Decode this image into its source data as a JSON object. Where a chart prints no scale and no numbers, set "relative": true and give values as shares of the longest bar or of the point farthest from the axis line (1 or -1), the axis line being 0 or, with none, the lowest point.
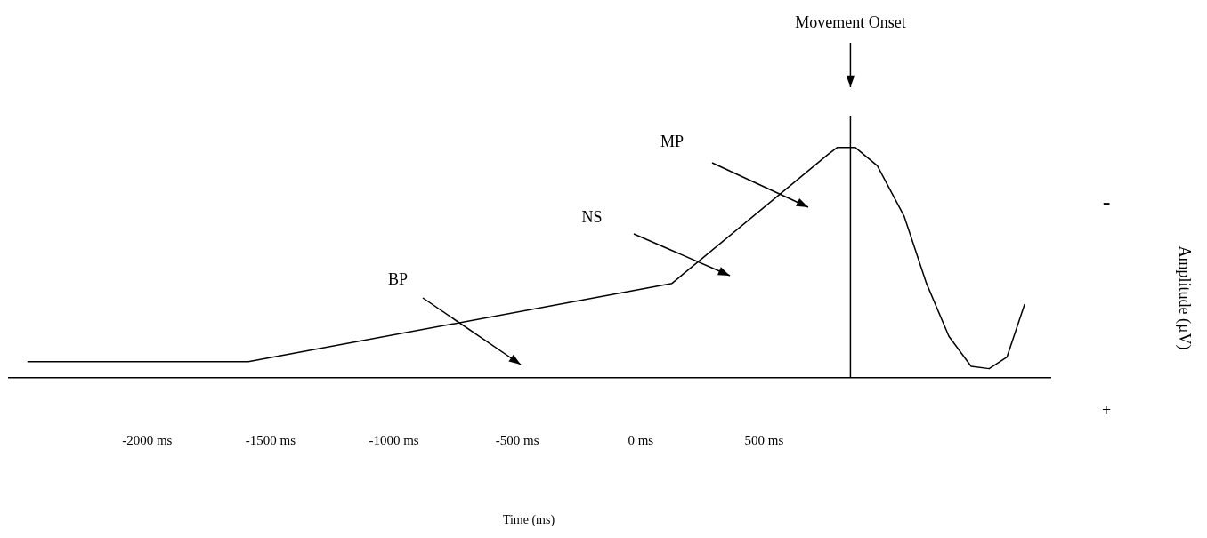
{
  "chart_data": {
    "type": "line",
    "relative": true,
    "xlim": [
      -2560,
      1660
    ],
    "xticks": [
      {
        "value": -2000,
        "label": "-2000 ms"
      },
      {
        "value": -1500,
        "label": "-1500 ms"
      },
      {
        "value": -1000,
        "label": "-1000 ms"
      },
      {
        "value": -500,
        "label": "-500 ms"
      },
      {
        "value": 0,
        "label": "0 ms"
      },
      {
        "value": 500,
        "label": "500 ms"
      }
    ],
    "x": [
      -2485,
      -1590,
      127,
      760,
      797,
      869,
      959,
      1068,
      1158,
      1249,
      1339,
      1412,
      1484,
      1556
    ],
    "series": [
      {
        "color": "#000000",
        "values": [
          0.07,
          0.07,
          0.41,
          0.97,
          1.0,
          1.0,
          0.92,
          0.7,
          0.41,
          0.18,
          0.05,
          0.04,
          0.09,
          0.32
        ]
      }
    ],
    "ref_lines": [
      {
        "axis": "x",
        "value": 850,
        "label": "Movement Onset",
        "color": "#000000"
      }
    ],
    "annotations": [
      "BP",
      "NS",
      "MP",
      "-",
      "+",
      "Amplitude (µV)",
      "Time (ms)"
    ],
    "marker": "none",
    "line_style": "solid",
    "grid": false,
    "legend": false
  }
}
